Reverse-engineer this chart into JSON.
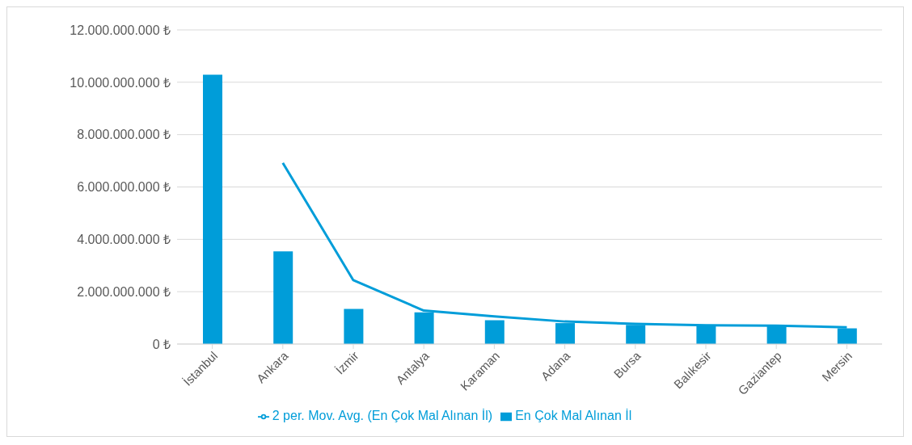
{
  "chart_data": {
    "type": "bar",
    "categories": [
      "İstanbul",
      "Ankara",
      "İzmir",
      "Antalya",
      "Karaman",
      "Adana",
      "Bursa",
      "Balıkesir",
      "Gaziantep",
      "Mersin"
    ],
    "series": [
      {
        "name": "En Çok Mal Alınan İl",
        "color": "#009dd9",
        "values": [
          10290000000,
          3540000000,
          1340000000,
          1210000000,
          910000000,
          800000000,
          730000000,
          710000000,
          680000000,
          600000000
        ]
      },
      {
        "name": "2 per. Mov. Avg. (En Çok Mal Alınan İl)",
        "type": "line",
        "color": "#009dd9",
        "values": [
          null,
          6920000000,
          2440000000,
          1280000000,
          1060000000,
          860000000,
          770000000,
          720000000,
          700000000,
          640000000
        ]
      }
    ],
    "ylim": [
      0,
      12000000000
    ],
    "yticks": [
      {
        "value": 0,
        "label": "0 ₺"
      },
      {
        "value": 2000000000,
        "label": "2.000.000.000 ₺"
      },
      {
        "value": 4000000000,
        "label": "4.000.000.000 ₺"
      },
      {
        "value": 6000000000,
        "label": "6.000.000.000 ₺"
      },
      {
        "value": 8000000000,
        "label": "8.000.000.000 ₺"
      },
      {
        "value": 10000000000,
        "label": "10.000.000.000 ₺"
      },
      {
        "value": 12000000000,
        "label": "12.000.000.000 ₺"
      }
    ],
    "grid": "y",
    "legend": "bottom",
    "marker": "none",
    "line_style": "solid"
  }
}
